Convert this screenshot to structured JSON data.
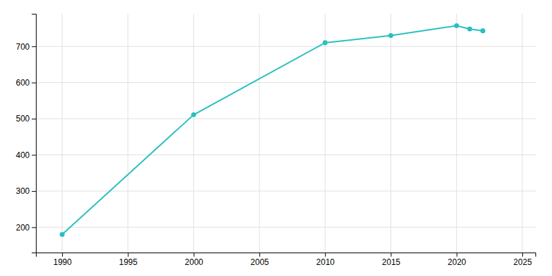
{
  "chart_data": {
    "type": "line",
    "x": [
      1990,
      2000,
      2010,
      2015,
      2020,
      2021,
      2022
    ],
    "values": [
      180,
      511,
      710,
      730,
      757,
      748,
      743
    ],
    "color": "#2abfbf",
    "marker": "circle",
    "xlim": [
      1988,
      2026
    ],
    "ylim": [
      130,
      790
    ],
    "xticks": [
      1990,
      1995,
      2000,
      2005,
      2010,
      2015,
      2020,
      2025
    ],
    "yticks": [
      200,
      300,
      400,
      500,
      600,
      700
    ],
    "grid": true
  }
}
